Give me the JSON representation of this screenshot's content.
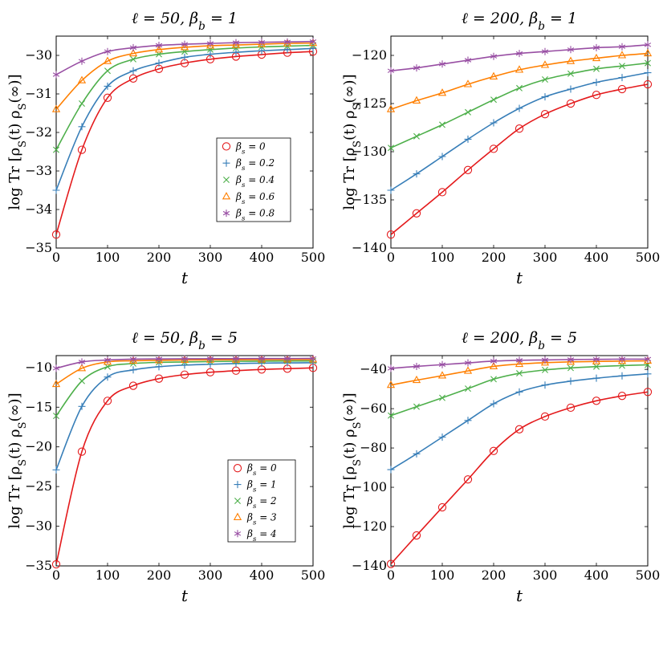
{
  "figure": {
    "footer_text": "",
    "colors": [
      "#e41a1c",
      "#377eb8",
      "#4daf4a",
      "#ff7f00",
      "#984ea3"
    ],
    "markers": [
      "circle",
      "plus",
      "cross",
      "triangle",
      "asterisk"
    ]
  },
  "chart_data": [
    {
      "type": "line",
      "title": "ℓ = 50, β_b = 1",
      "xlabel": "t",
      "ylabel": "log Tr [ρ_S(t) ρ_S(∞)]",
      "xlim": [
        0,
        500
      ],
      "ylim": [
        -35,
        -29.5
      ],
      "xticks": [
        0,
        100,
        200,
        300,
        400,
        500
      ],
      "yticks": [
        -35,
        -34,
        -33,
        -32,
        -31,
        -30
      ],
      "grid": false,
      "legend_position": "center-right",
      "x": [
        0,
        50,
        100,
        150,
        200,
        250,
        300,
        350,
        400,
        450,
        500
      ],
      "series": [
        {
          "name": "β_s = 0",
          "values": [
            -34.65,
            -32.45,
            -31.1,
            -30.6,
            -30.35,
            -30.2,
            -30.1,
            -30.03,
            -29.98,
            -29.93,
            -29.9
          ]
        },
        {
          "name": "β_s = 0.2",
          "values": [
            -33.5,
            -31.85,
            -30.8,
            -30.4,
            -30.2,
            -30.05,
            -29.97,
            -29.92,
            -29.88,
            -29.85,
            -29.82
          ]
        },
        {
          "name": "β_s = 0.4",
          "values": [
            -32.45,
            -31.25,
            -30.4,
            -30.1,
            -29.97,
            -29.9,
            -29.85,
            -29.81,
            -29.78,
            -29.76,
            -29.74
          ]
        },
        {
          "name": "β_s = 0.6",
          "values": [
            -31.4,
            -30.65,
            -30.15,
            -29.95,
            -29.85,
            -29.79,
            -29.75,
            -29.73,
            -29.71,
            -29.69,
            -29.68
          ]
        },
        {
          "name": "β_s = 0.8",
          "values": [
            -30.5,
            -30.15,
            -29.9,
            -29.8,
            -29.74,
            -29.71,
            -29.69,
            -29.67,
            -29.66,
            -29.65,
            -29.64
          ]
        }
      ]
    },
    {
      "type": "line",
      "title": "ℓ = 200, β_b = 1",
      "xlabel": "t",
      "ylabel": "log Tr [ρ_S(t) ρ_S(∞)]",
      "xlim": [
        0,
        500
      ],
      "ylim": [
        -140,
        -118
      ],
      "xticks": [
        0,
        100,
        200,
        300,
        400,
        500
      ],
      "yticks": [
        -140,
        -135,
        -130,
        -125,
        -120
      ],
      "grid": false,
      "x": [
        0,
        50,
        100,
        150,
        200,
        250,
        300,
        350,
        400,
        450,
        500
      ],
      "series": [
        {
          "name": "β_s = 0",
          "values": [
            -138.6,
            -136.4,
            -134.2,
            -131.9,
            -129.7,
            -127.6,
            -126.1,
            -125.0,
            -124.1,
            -123.5,
            -123.0
          ]
        },
        {
          "name": "β_s = 0.2",
          "values": [
            -134.0,
            -132.3,
            -130.5,
            -128.7,
            -127.0,
            -125.5,
            -124.3,
            -123.5,
            -122.8,
            -122.3,
            -121.8
          ]
        },
        {
          "name": "β_s = 0.4",
          "values": [
            -129.6,
            -128.4,
            -127.2,
            -125.9,
            -124.6,
            -123.4,
            -122.5,
            -121.9,
            -121.4,
            -121.1,
            -120.8
          ]
        },
        {
          "name": "β_s = 0.6",
          "values": [
            -125.6,
            -124.7,
            -123.9,
            -123.0,
            -122.2,
            -121.5,
            -121.0,
            -120.6,
            -120.3,
            -120.0,
            -119.8
          ]
        },
        {
          "name": "β_s = 0.8",
          "values": [
            -121.6,
            -121.3,
            -120.9,
            -120.5,
            -120.1,
            -119.8,
            -119.6,
            -119.4,
            -119.2,
            -119.1,
            -118.9
          ]
        }
      ]
    },
    {
      "type": "line",
      "title": "ℓ = 50, β_b = 5",
      "xlabel": "t",
      "ylabel": "log Tr [ρ_S(t) ρ_S(∞)]",
      "xlim": [
        0,
        500
      ],
      "ylim": [
        -35,
        -8.5
      ],
      "xticks": [
        0,
        100,
        200,
        300,
        400,
        500
      ],
      "yticks": [
        -35,
        -30,
        -25,
        -20,
        -15,
        -10
      ],
      "grid": false,
      "legend_position": "bottom-right",
      "x": [
        0,
        50,
        100,
        150,
        200,
        250,
        300,
        350,
        400,
        450,
        500
      ],
      "series": [
        {
          "name": "β_s = 0",
          "values": [
            -34.8,
            -20.6,
            -14.2,
            -12.3,
            -11.4,
            -10.9,
            -10.6,
            -10.4,
            -10.25,
            -10.15,
            -10.05
          ]
        },
        {
          "name": "β_s = 1",
          "values": [
            -22.9,
            -14.9,
            -11.2,
            -10.3,
            -9.9,
            -9.7,
            -9.6,
            -9.5,
            -9.45,
            -9.42,
            -9.4
          ]
        },
        {
          "name": "β_s = 2",
          "values": [
            -16.1,
            -11.7,
            -9.9,
            -9.5,
            -9.35,
            -9.3,
            -9.25,
            -9.22,
            -9.2,
            -9.18,
            -9.17
          ]
        },
        {
          "name": "β_s = 3",
          "values": [
            -12.1,
            -10.1,
            -9.3,
            -9.15,
            -9.1,
            -9.05,
            -9.03,
            -9.02,
            -9.01,
            -9.0,
            -9.0
          ]
        },
        {
          "name": "β_s = 4",
          "values": [
            -10.1,
            -9.3,
            -9.05,
            -8.95,
            -8.92,
            -8.9,
            -8.89,
            -8.88,
            -8.87,
            -8.87,
            -8.86
          ]
        }
      ]
    },
    {
      "type": "line",
      "title": "ℓ = 200, β_b = 5",
      "xlabel": "t",
      "ylabel": "log Tr [ρ_S(t) ρ_S(∞)]",
      "xlim": [
        0,
        500
      ],
      "ylim": [
        -140,
        -33
      ],
      "xticks": [
        0,
        100,
        200,
        300,
        400,
        500
      ],
      "yticks": [
        -140,
        -120,
        -100,
        -80,
        -60,
        -40
      ],
      "grid": false,
      "x": [
        0,
        50,
        100,
        150,
        200,
        250,
        300,
        350,
        400,
        450,
        500
      ],
      "series": [
        {
          "name": "β_s = 0",
          "values": [
            -139.0,
            -124.5,
            -110.2,
            -96.0,
            -81.5,
            -70.5,
            -64.0,
            -59.5,
            -56.0,
            -53.5,
            -51.5
          ]
        },
        {
          "name": "β_s = 1",
          "values": [
            -91.0,
            -83.0,
            -74.5,
            -66.0,
            -57.5,
            -51.5,
            -48.0,
            -46.0,
            -44.5,
            -43.3,
            -42.3
          ]
        },
        {
          "name": "β_s = 2",
          "values": [
            -63.5,
            -59.0,
            -54.5,
            -49.8,
            -45.0,
            -42.0,
            -40.3,
            -39.3,
            -38.6,
            -38.1,
            -37.7
          ]
        },
        {
          "name": "β_s = 3",
          "values": [
            -48.0,
            -45.5,
            -43.2,
            -40.8,
            -38.5,
            -37.3,
            -36.6,
            -36.2,
            -36.0,
            -35.8,
            -35.7
          ]
        },
        {
          "name": "β_s = 4",
          "values": [
            -39.5,
            -38.5,
            -37.6,
            -36.7,
            -35.8,
            -35.4,
            -35.2,
            -35.0,
            -34.9,
            -34.8,
            -34.8
          ]
        }
      ]
    }
  ]
}
